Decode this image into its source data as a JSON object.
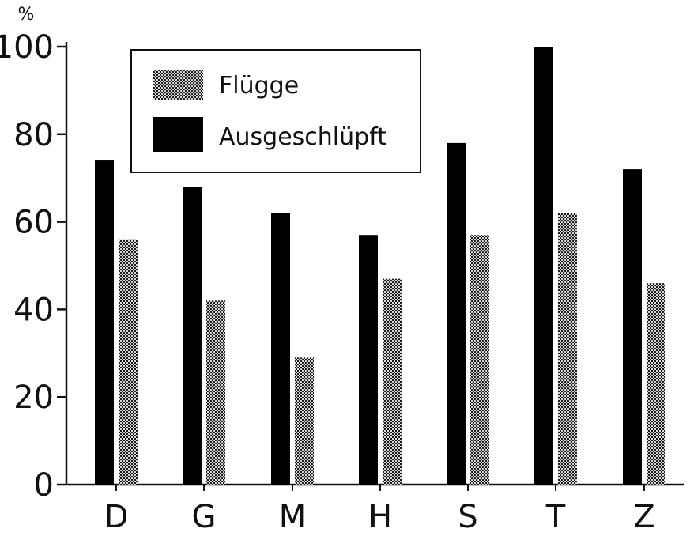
{
  "chart_data": {
    "type": "bar",
    "ylabel": "%",
    "xlabel": "",
    "ylim": [
      0,
      100
    ],
    "yticks": [
      0,
      20,
      40,
      60,
      80,
      100
    ],
    "categories": [
      "D",
      "G",
      "M",
      "H",
      "S",
      "T",
      "Z"
    ],
    "series": [
      {
        "name": "Ausgeschlüpft",
        "values": [
          74,
          68,
          62,
          57,
          78,
          100,
          72
        ],
        "color": "#000000",
        "pattern": "solid"
      },
      {
        "name": "Flügge",
        "values": [
          56,
          42,
          29,
          47,
          57,
          62,
          46
        ],
        "color": "#8a8a8a",
        "pattern": "checkered"
      }
    ],
    "legend": {
      "position": "top-left",
      "order": [
        "Flügge",
        "Ausgeschlüpft"
      ]
    },
    "grid": false
  }
}
